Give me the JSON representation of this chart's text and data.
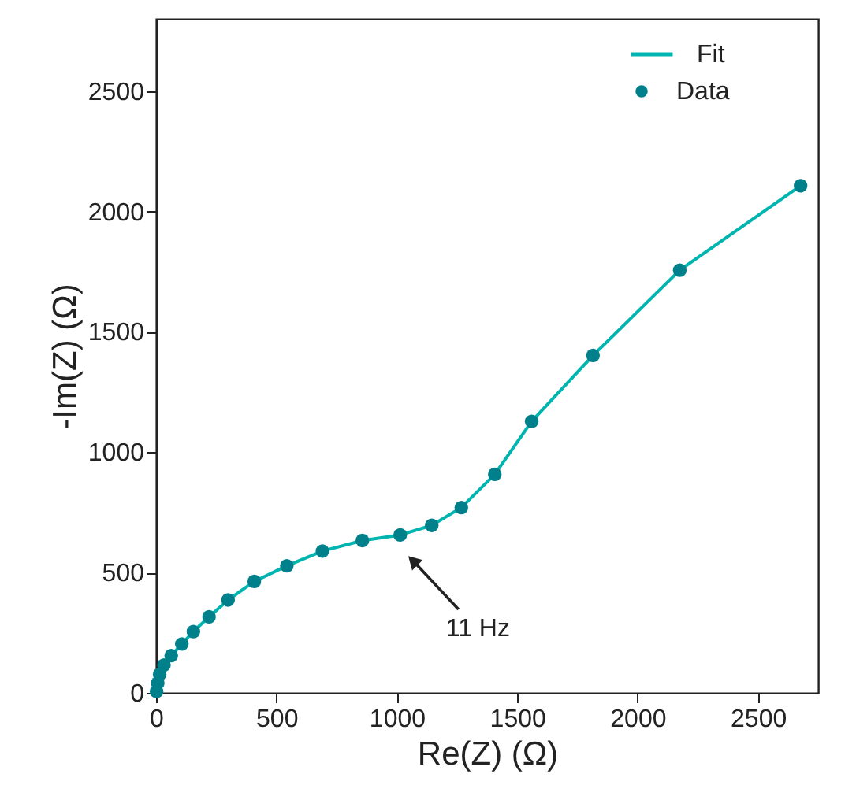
{
  "chart_data": {
    "type": "scatter",
    "xlabel": "Re(Z) (Ω)",
    "ylabel": "-Im(Z) (Ω)",
    "xlim": [
      0,
      2750
    ],
    "ylim": [
      0,
      2800
    ],
    "xticks": [
      0,
      500,
      {
        "value": 1000,
        "label": "1000"
      },
      {
        "value": 1500,
        "label": "1500"
      },
      {
        "value": 2000,
        "label": "2000"
      },
      {
        "value": 2500,
        "label": "2500"
      }
    ],
    "yticks": [
      0,
      500,
      {
        "value": 1000,
        "label": "1000"
      },
      {
        "value": 1500,
        "label": "1500"
      },
      {
        "value": 2000,
        "label": "2000"
      },
      {
        "value": 2500,
        "label": "2500"
      }
    ],
    "grid": false,
    "legend": "top right",
    "series": [
      {
        "name": "Fit",
        "type": "line",
        "line_style": "solid",
        "color": "#00b5b0",
        "x": [
          2,
          7,
          15,
          33,
          63,
          107,
          155,
          220,
          299,
          408,
          543,
          691,
          857,
          1014,
          1145,
          1268,
          1407,
          1560,
          1815,
          2175,
          2677
        ],
        "values": [
          6,
          41,
          77,
          116,
          155,
          203,
          255,
          316,
          386,
          463,
          528,
          589,
          633,
          656,
          696,
          770,
          908,
          1128,
          1402,
          1756,
          2107
        ]
      },
      {
        "name": "Data",
        "type": "scatter",
        "marker": "circle",
        "color": "#00808a",
        "x": [
          2,
          7,
          15,
          33,
          63,
          107,
          155,
          220,
          299,
          408,
          543,
          691,
          857,
          1014,
          1145,
          1268,
          1407,
          1560,
          1815,
          2175,
          2677
        ],
        "values": [
          6,
          41,
          77,
          116,
          155,
          203,
          255,
          316,
          386,
          463,
          528,
          589,
          633,
          656,
          696,
          770,
          908,
          1128,
          1402,
          1756,
          2107
        ]
      }
    ],
    "annotations": [
      {
        "text": "11 Hz",
        "x": 1073,
        "y": 543
      }
    ]
  }
}
